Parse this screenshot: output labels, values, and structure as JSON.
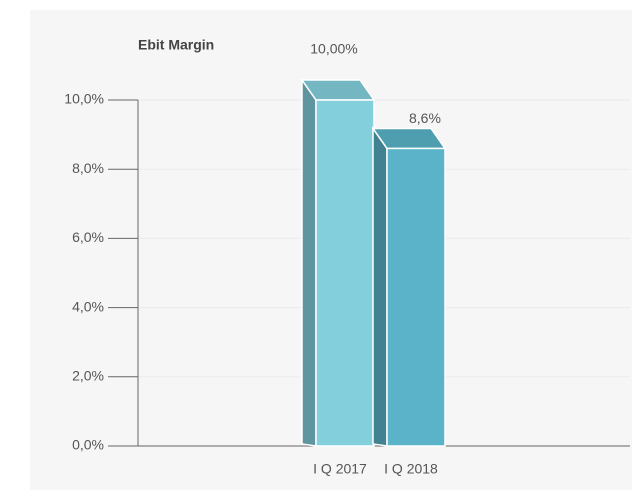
{
  "chart_data": {
    "type": "bar3d",
    "title": "Ebit Margin",
    "categories": [
      "I Q 2017",
      "I Q 2018"
    ],
    "values": [
      10,
      8.6
    ],
    "value_labels": [
      "10,00%",
      "8,6%"
    ],
    "colors": [
      "#84cfdc",
      "#5ab3c8"
    ],
    "ylim": [
      0,
      10
    ],
    "yticks": [
      {
        "value": 0,
        "label": "0,0%"
      },
      {
        "value": 2,
        "label": "2,0%"
      },
      {
        "value": 4,
        "label": "4,0%"
      },
      {
        "value": 6,
        "label": "6,0%"
      },
      {
        "value": 8,
        "label": "8,0%"
      },
      {
        "value": 10,
        "label": "10,0%"
      }
    ],
    "grid": true
  }
}
